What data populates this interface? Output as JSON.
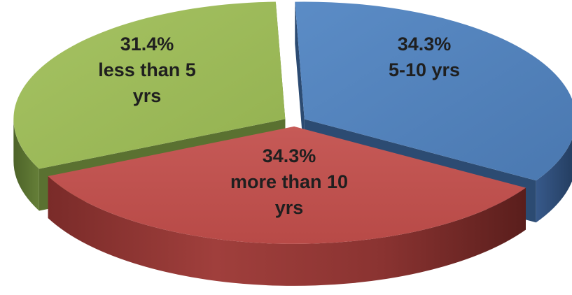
{
  "chart_data": {
    "type": "pie",
    "style": "3d-exploded",
    "legend": "none",
    "slices": [
      {
        "value": 34.3,
        "value_label": "34.3%",
        "category_lines": [
          "5-10 yrs"
        ],
        "color": "#4f81bd",
        "side_color": "#2c4b72"
      },
      {
        "value": 34.3,
        "value_label": "34.3%",
        "category_lines": [
          "more than 10",
          "yrs"
        ],
        "color": "#c0504d",
        "side_color": "#7a2a28"
      },
      {
        "value": 31.4,
        "value_label": "31.4%",
        "category_lines": [
          "less than 5",
          "yrs"
        ],
        "color": "#9bbb59",
        "side_color": "#5a7131"
      }
    ]
  }
}
